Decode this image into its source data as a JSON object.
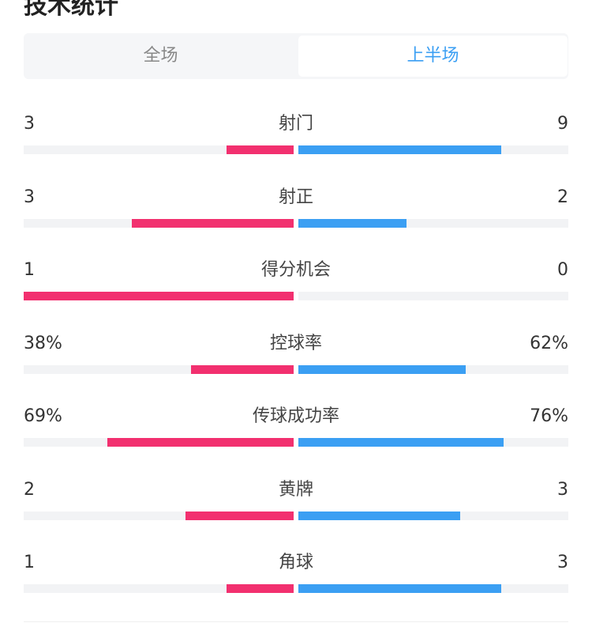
{
  "header": {
    "title": "技术统计"
  },
  "tabs": [
    {
      "label": "全场"
    },
    {
      "label": "上半场"
    }
  ],
  "active_tab": 1,
  "colors": {
    "home": "#f2306f",
    "away": "#3b9ff3"
  },
  "rows": [
    {
      "label": "射门",
      "values": [
        3,
        9
      ]
    },
    {
      "label": "射正",
      "values": [
        3,
        2
      ]
    },
    {
      "label": "得分机会",
      "values": [
        1,
        0
      ]
    },
    {
      "label": "控球率",
      "values": [
        38,
        62
      ],
      "value_labels": [
        "38%",
        "62%"
      ]
    },
    {
      "label": "传球成功率",
      "values": [
        69,
        76
      ],
      "value_labels": [
        "69%",
        "76%"
      ]
    },
    {
      "label": "黄牌",
      "values": [
        2,
        3
      ]
    },
    {
      "label": "角球",
      "values": [
        1,
        3
      ]
    }
  ]
}
